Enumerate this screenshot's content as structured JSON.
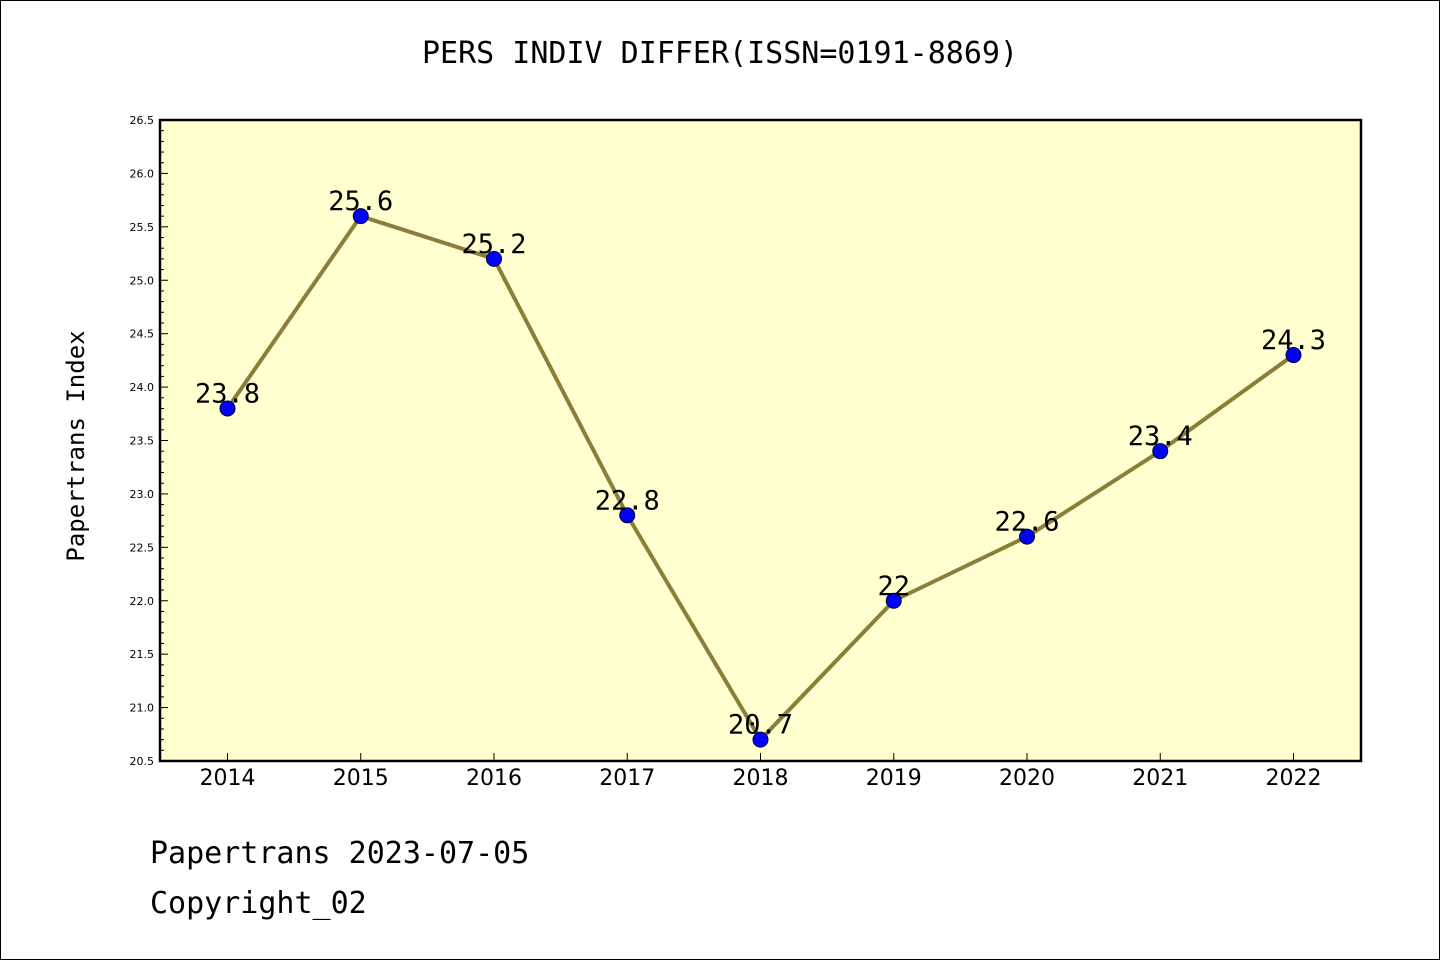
{
  "title": "PERS INDIV DIFFER(ISSN=0191-8869)",
  "footer": {
    "line1": "Papertrans 2023-07-05",
    "line2": "Copyright_02"
  },
  "colors": {
    "plot_background": "#ffffd0",
    "line": "#8b7d3a",
    "marker": "#0000ff",
    "axis": "#000000"
  },
  "chart_data": {
    "type": "line",
    "title": "PERS INDIV DIFFER(ISSN=0191-8869)",
    "xlabel": "",
    "ylabel": "Papertrans Index",
    "categories": [
      "2014",
      "2015",
      "2016",
      "2017",
      "2018",
      "2019",
      "2020",
      "2021",
      "2022"
    ],
    "values": [
      23.8,
      25.6,
      25.2,
      22.8,
      20.7,
      22.0,
      22.6,
      23.4,
      24.3
    ],
    "data_labels": [
      "23.8",
      "25.6",
      "25.2",
      "22.8",
      "20.7",
      "22",
      "22.6",
      "23.4",
      "24.3"
    ],
    "ylim": [
      20.5,
      26.5
    ],
    "yticks": [
      "20.5",
      "21.0",
      "21.5",
      "22.0",
      "22.5",
      "23.0",
      "23.5",
      "24.0",
      "24.5",
      "25.0",
      "25.5",
      "26.0",
      "26.5"
    ],
    "grid": false,
    "legend": "none"
  }
}
